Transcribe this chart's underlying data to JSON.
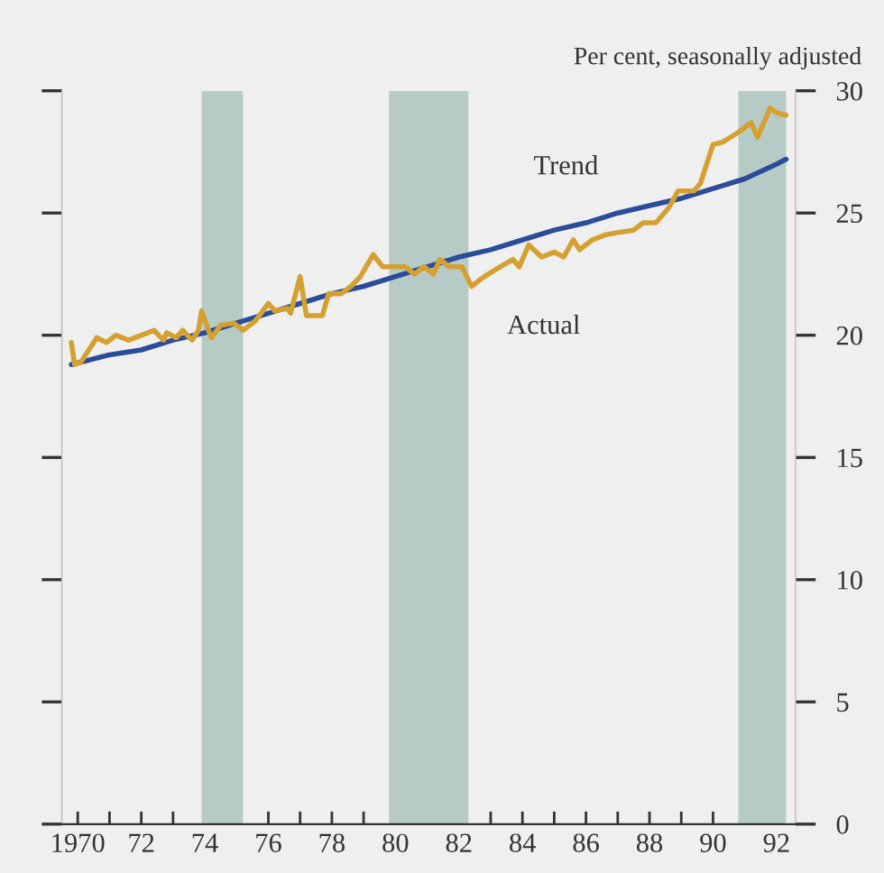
{
  "chart_data": {
    "type": "line",
    "ylabel": "Per cent, seasonally adjusted",
    "xlim": [
      1969.5,
      1992.6
    ],
    "ylim": [
      0,
      30
    ],
    "xticks": [
      {
        "value": 1970,
        "label": "1970"
      },
      {
        "value": 1971,
        "label": null
      },
      {
        "value": 1972,
        "label": "72"
      },
      {
        "value": 1973,
        "label": null
      },
      {
        "value": 1974,
        "label": "74"
      },
      {
        "value": 1975,
        "label": null
      },
      {
        "value": 1976,
        "label": "76"
      },
      {
        "value": 1977,
        "label": null
      },
      {
        "value": 1978,
        "label": "78"
      },
      {
        "value": 1979,
        "label": null
      },
      {
        "value": 1980,
        "label": "80"
      },
      {
        "value": 1981,
        "label": null
      },
      {
        "value": 1982,
        "label": "82"
      },
      {
        "value": 1983,
        "label": null
      },
      {
        "value": 1984,
        "label": "84"
      },
      {
        "value": 1985,
        "label": null
      },
      {
        "value": 1986,
        "label": "86"
      },
      {
        "value": 1987,
        "label": null
      },
      {
        "value": 1988,
        "label": "88"
      },
      {
        "value": 1989,
        "label": null
      },
      {
        "value": 1990,
        "label": "90"
      },
      {
        "value": 1991,
        "label": null
      },
      {
        "value": 1992,
        "label": "92"
      }
    ],
    "yticks": [
      0,
      5,
      10,
      15,
      20,
      25,
      30
    ],
    "grid": false,
    "legend": false,
    "bands": [
      {
        "axis": "x",
        "from": 1973.9,
        "to": 1975.2,
        "color": "#b7cbc6"
      },
      {
        "axis": "x",
        "from": 1979.8,
        "to": 1982.3,
        "color": "#b7cbc6"
      },
      {
        "axis": "x",
        "from": 1990.8,
        "to": 1992.3,
        "color": "#b7cbc6"
      }
    ],
    "series": [
      {
        "name": "Trend",
        "color": "#2b4c9b",
        "x": [
          1969.8,
          1971,
          1972,
          1973,
          1974,
          1975,
          1976,
          1977,
          1978,
          1979,
          1980,
          1981,
          1982,
          1983,
          1984,
          1985,
          1986,
          1987,
          1988,
          1989,
          1990,
          1991,
          1992,
          1992.3
        ],
        "values": [
          18.8,
          19.2,
          19.4,
          19.8,
          20.1,
          20.5,
          20.9,
          21.3,
          21.7,
          22.0,
          22.4,
          22.8,
          23.2,
          23.5,
          23.9,
          24.3,
          24.6,
          25.0,
          25.3,
          25.6,
          26.0,
          26.4,
          27.0,
          27.2
        ]
      },
      {
        "name": "Actual",
        "color": "#d4a030",
        "x": [
          1969.8,
          1969.9,
          1970.1,
          1970.6,
          1970.9,
          1971.2,
          1971.6,
          1972.4,
          1972.7,
          1972.8,
          1973.1,
          1973.3,
          1973.6,
          1973.8,
          1973.9,
          1974.2,
          1974.5,
          1974.9,
          1975.2,
          1975.6,
          1976.0,
          1976.2,
          1976.6,
          1976.7,
          1977.0,
          1977.2,
          1977.7,
          1977.9,
          1978.3,
          1978.6,
          1978.9,
          1979.3,
          1979.6,
          1980.3,
          1980.6,
          1980.9,
          1981.2,
          1981.4,
          1981.7,
          1982.1,
          1982.4,
          1982.8,
          1983.3,
          1983.7,
          1983.9,
          1984.2,
          1984.6,
          1985.0,
          1985.3,
          1985.6,
          1985.8,
          1986.2,
          1986.6,
          1987.0,
          1987.5,
          1987.8,
          1988.2,
          1988.6,
          1988.9,
          1989.4,
          1989.6,
          1990.0,
          1990.3,
          1990.8,
          1991.2,
          1991.4,
          1991.8,
          1992.0,
          1992.3
        ],
        "values": [
          19.7,
          18.8,
          18.9,
          19.9,
          19.7,
          20.0,
          19.8,
          20.2,
          19.8,
          20.1,
          19.9,
          20.2,
          19.8,
          20.2,
          21.0,
          19.9,
          20.4,
          20.5,
          20.2,
          20.6,
          21.3,
          21.0,
          21.1,
          20.9,
          22.4,
          20.8,
          20.8,
          21.7,
          21.7,
          22.0,
          22.4,
          23.3,
          22.8,
          22.8,
          22.5,
          22.8,
          22.5,
          23.1,
          22.8,
          22.8,
          22.0,
          22.4,
          22.8,
          23.1,
          22.8,
          23.7,
          23.2,
          23.4,
          23.2,
          23.9,
          23.5,
          23.9,
          24.1,
          24.2,
          24.3,
          24.6,
          24.6,
          25.2,
          25.9,
          25.9,
          26.2,
          27.8,
          27.9,
          28.3,
          28.7,
          28.1,
          29.3,
          29.1,
          29.0
        ]
      }
    ]
  }
}
